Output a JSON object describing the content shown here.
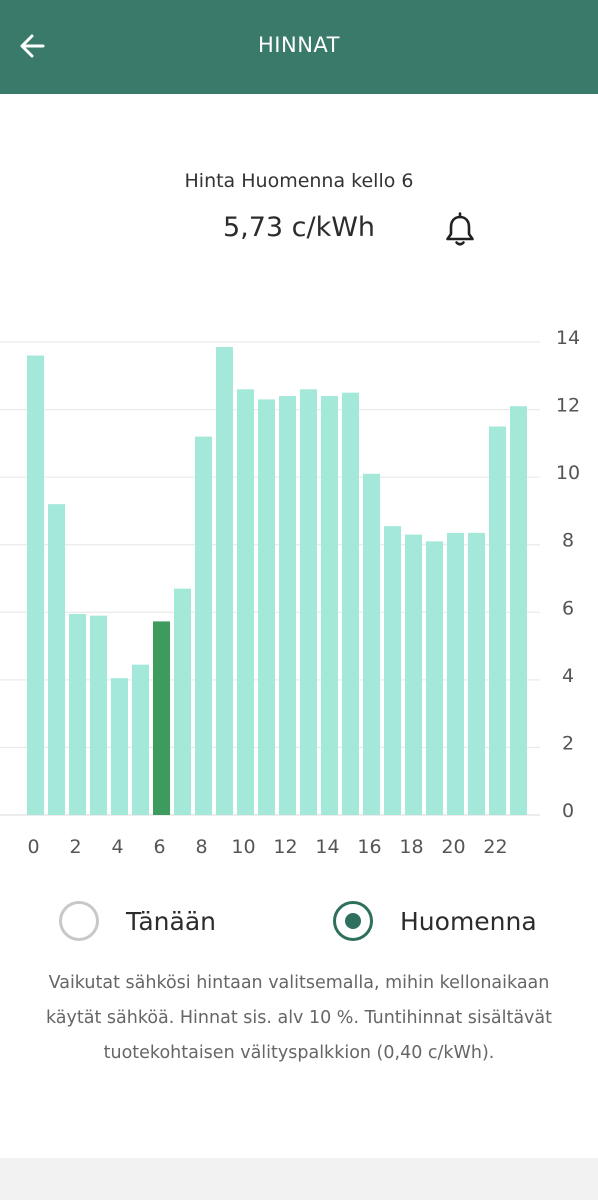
{
  "header": {
    "title": "HINNAT",
    "back_icon": "arrow-left-icon"
  },
  "selected_price": {
    "caption": "Hinta Huomenna kello 6",
    "value": "5,73 c/kWh",
    "alert_icon": "bell-icon"
  },
  "chart_data": {
    "type": "bar",
    "title": "",
    "xlabel": "",
    "ylabel": "",
    "x": [
      0,
      1,
      2,
      3,
      4,
      5,
      6,
      7,
      8,
      9,
      10,
      11,
      12,
      13,
      14,
      15,
      16,
      17,
      18,
      19,
      20,
      21,
      22,
      23
    ],
    "values": [
      13.6,
      9.2,
      5.95,
      5.9,
      4.05,
      4.45,
      5.73,
      6.7,
      11.2,
      13.85,
      12.6,
      12.3,
      12.4,
      12.6,
      12.4,
      12.5,
      10.1,
      8.55,
      8.3,
      8.1,
      8.35,
      8.35,
      11.5,
      12.1
    ],
    "highlight_index": 6,
    "x_tick_labels": [
      "0",
      "2",
      "4",
      "6",
      "8",
      "10",
      "12",
      "14",
      "16",
      "18",
      "20",
      "22"
    ],
    "y_tick_labels": [
      "0",
      "2",
      "4",
      "6",
      "8",
      "10",
      "12",
      "14"
    ],
    "ylim": [
      0,
      14
    ],
    "y_axis_position": "right",
    "grid": true,
    "colors": {
      "bar": "#a3e8d9",
      "highlight": "#3d9b5d",
      "grid": "#e6e6e6",
      "tick_text": "#555555"
    }
  },
  "day_selector": {
    "today_label": "Tänään",
    "tomorrow_label": "Huomenna",
    "selected": "tomorrow"
  },
  "info": {
    "text": "Vaikutat sähkösi hintaan valitsemalla, mihin kellonaikaan käytät sähköä. Hinnat sis. alv 10 %. Tuntihinnat sisältävät tuotekohtaisen välityspalkkion (0,40 c/kWh)."
  },
  "colors": {
    "app_bar": "#397a6a",
    "accent": "#2f6f5e"
  }
}
